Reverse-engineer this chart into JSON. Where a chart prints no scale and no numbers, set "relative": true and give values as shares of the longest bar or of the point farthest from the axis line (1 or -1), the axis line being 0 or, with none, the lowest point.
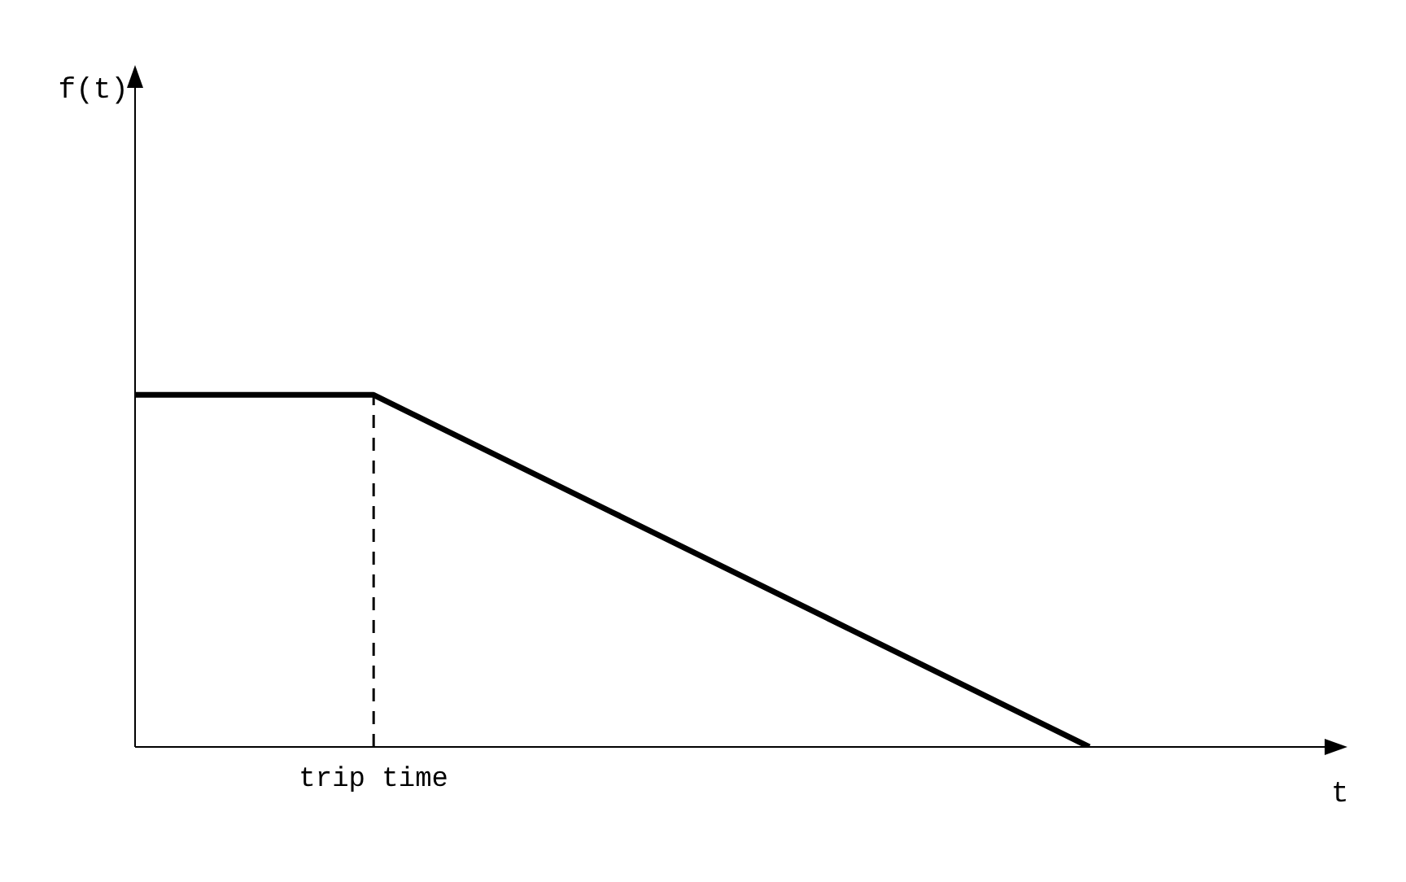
{
  "chart_data": {
    "type": "line",
    "relative": true,
    "xlabel": "t",
    "categories": [
      null,
      null,
      null,
      null,
      null,
      null
    ],
    "series": [
      {
        "color": "#000000",
        "values": [
          1,
          1,
          0.6667,
          0.3333,
          0,
          null
        ]
      }
    ],
    "annotations": [
      "trip time",
      "f(t)"
    ],
    "grid": false,
    "legend": false,
    "marker": "none",
    "line_style": "solid"
  }
}
